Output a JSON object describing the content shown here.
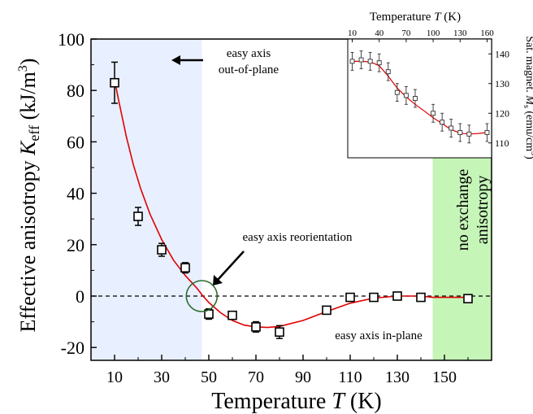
{
  "chart_data": [
    {
      "type": "scatter",
      "xlabel_prefix": "Temperature ",
      "xlabel_var": "T",
      "xlabel_unit": " (K)",
      "ylabel_prefix": "Effective anisotropy ",
      "ylabel_var": "K",
      "ylabel_sub": "eff",
      "ylabel_unit_open": " (kJ/m",
      "ylabel_unit_sup": "3",
      "ylabel_unit_close": ")",
      "xlim": [
        0,
        170
      ],
      "ylim": [
        -25,
        100
      ],
      "xticks": [
        "10",
        "30",
        "50",
        "70",
        "90",
        "110",
        "130",
        "150"
      ],
      "yticks": [
        "-20",
        "0",
        "20",
        "40",
        "60",
        "80",
        "100"
      ],
      "points": [
        {
          "x": 10,
          "y": 83,
          "err": 8
        },
        {
          "x": 20,
          "y": 31,
          "err": 3.5
        },
        {
          "x": 30,
          "y": 18,
          "err": 2.5
        },
        {
          "x": 40,
          "y": 11,
          "err": 2
        },
        {
          "x": 50,
          "y": -7,
          "err": 2
        },
        {
          "x": 60,
          "y": -7.5,
          "err": 1.5
        },
        {
          "x": 70,
          "y": -12,
          "err": 2
        },
        {
          "x": 80,
          "y": -14,
          "err": 2.5
        },
        {
          "x": 100,
          "y": -5.5,
          "err": 1
        },
        {
          "x": 110,
          "y": -0.5,
          "err": 0.5
        },
        {
          "x": 120,
          "y": -0.5,
          "err": 0.5
        },
        {
          "x": 130,
          "y": 0,
          "err": 0.5
        },
        {
          "x": 140,
          "y": -0.5,
          "err": 0.5
        },
        {
          "x": 160,
          "y": -1,
          "err": 0.5
        }
      ],
      "fit_curve": [
        [
          10,
          84
        ],
        [
          12,
          75
        ],
        [
          15,
          62
        ],
        [
          18,
          51
        ],
        [
          21,
          42
        ],
        [
          25,
          32
        ],
        [
          30,
          22
        ],
        [
          35,
          14
        ],
        [
          40,
          8
        ],
        [
          45,
          3
        ],
        [
          47.5,
          0
        ],
        [
          50,
          -2.5
        ],
        [
          55,
          -6.5
        ],
        [
          60,
          -9.5
        ],
        [
          65,
          -11.3
        ],
        [
          70,
          -12
        ],
        [
          75,
          -12.2
        ],
        [
          80,
          -11.8
        ],
        [
          90,
          -9.5
        ],
        [
          100,
          -6
        ],
        [
          110,
          -2.8
        ],
        [
          120,
          -0.8
        ],
        [
          130,
          0
        ],
        [
          140,
          0
        ],
        [
          145,
          -0.5
        ],
        [
          150,
          -0.5
        ],
        [
          160,
          -0.5
        ]
      ],
      "region_left": {
        "x_end": 47,
        "color": "#e8efff"
      },
      "region_right": {
        "x_start": 145,
        "color": "#c6f5b8"
      },
      "reorientation_point": {
        "x": 47,
        "y": 0
      },
      "annotations": {
        "easy_out_line1": "easy axis",
        "easy_out_line2": "out-of-plane",
        "reorientation": "easy axis reorientation",
        "easy_in_plane": "easy axis in-plane",
        "no_exchange_line1": "no exchange",
        "no_exchange_line2": "anisotropy"
      }
    },
    {
      "type": "scatter",
      "xlabel_prefix": "Temperature ",
      "xlabel_var": "T",
      "xlabel_unit": " (K)",
      "ylabel_prefix": "Sat. magnet. ",
      "ylabel_var": "M",
      "ylabel_sub": "s",
      "ylabel_unit_open": " (emu/cm",
      "ylabel_unit_sup": "3",
      "ylabel_unit_close": ")",
      "xlim": [
        5,
        165
      ],
      "ylim": [
        105,
        145
      ],
      "xticks": [
        "10",
        "40",
        "70",
        "100",
        "130",
        "160"
      ],
      "yticks": [
        "110",
        "120",
        "130",
        "140"
      ],
      "points": [
        {
          "x": 10,
          "y": 137.5,
          "err": 3
        },
        {
          "x": 20,
          "y": 138,
          "err": 3
        },
        {
          "x": 30,
          "y": 137.5,
          "err": 3
        },
        {
          "x": 40,
          "y": 137,
          "err": 3
        },
        {
          "x": 50,
          "y": 134,
          "err": 3
        },
        {
          "x": 60,
          "y": 127,
          "err": 3
        },
        {
          "x": 70,
          "y": 126,
          "err": 3
        },
        {
          "x": 80,
          "y": 125,
          "err": 3
        },
        {
          "x": 100,
          "y": 120,
          "err": 3
        },
        {
          "x": 110,
          "y": 117,
          "err": 3
        },
        {
          "x": 120,
          "y": 115,
          "err": 3
        },
        {
          "x": 130,
          "y": 113.5,
          "err": 3
        },
        {
          "x": 140,
          "y": 113,
          "err": 3
        },
        {
          "x": 160,
          "y": 113.5,
          "err": 3
        }
      ],
      "fit_curve": [
        [
          10,
          137.5
        ],
        [
          20,
          137.5
        ],
        [
          30,
          137.3
        ],
        [
          40,
          136
        ],
        [
          50,
          132.5
        ],
        [
          60,
          128.5
        ],
        [
          70,
          125.5
        ],
        [
          80,
          123
        ],
        [
          90,
          120.8
        ],
        [
          100,
          118.5
        ],
        [
          110,
          116.5
        ],
        [
          120,
          114.5
        ],
        [
          130,
          113.3
        ],
        [
          140,
          113
        ],
        [
          150,
          113.2
        ],
        [
          160,
          113.5
        ]
      ]
    }
  ]
}
